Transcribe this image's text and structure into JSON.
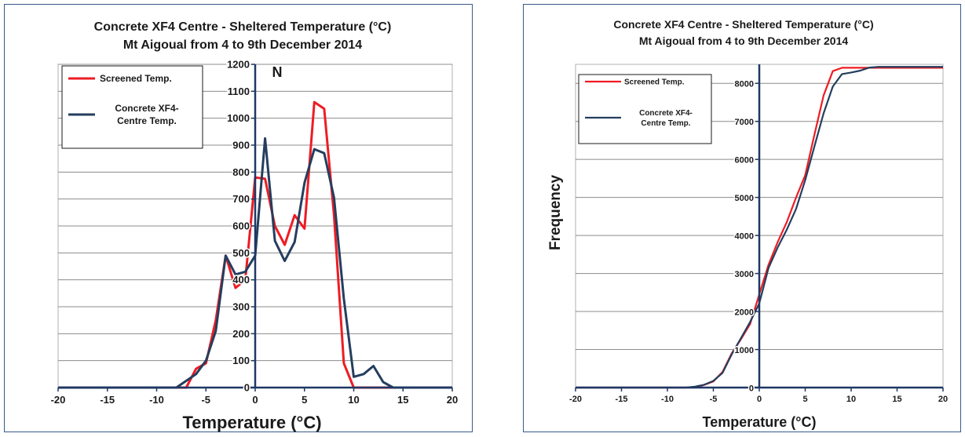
{
  "colors": {
    "screened": "#ee1c24",
    "concrete": "#243e5e",
    "axis": "#1f3864",
    "grid": "#8c8c8c",
    "border": "#3a5a8c"
  },
  "chart_data": [
    {
      "type": "line",
      "title_lines": [
        "Concrete XF4 Centre - Sheltered Temperature (°C)",
        "Mt Aigoual from 4 to 9th December 2014"
      ],
      "xlabel": "Temperature (°C)",
      "ylabel": "N",
      "xlim": [
        -20,
        20
      ],
      "ylim": [
        0,
        1200
      ],
      "x_ticks": [
        "-20",
        "-15",
        "-10",
        "-5",
        "0",
        "5",
        "10",
        "15",
        "20"
      ],
      "y_ticks": [
        "0",
        "100",
        "200",
        "300",
        "400",
        "500",
        "600",
        "700",
        "800",
        "900",
        "1000",
        "1100",
        "1200"
      ],
      "grid": true,
      "legend_position": "top-left",
      "legend": [
        "Screened Temp.",
        [
          "Concrete XF4-",
          "Centre Temp."
        ]
      ],
      "series": [
        {
          "name": "Screened Temp.",
          "x": [
            -20,
            -8,
            -7,
            -6,
            -5,
            -4,
            -3,
            -2,
            -1,
            0,
            1,
            2,
            3,
            4,
            5,
            6,
            7,
            8,
            9,
            10,
            11,
            12,
            13,
            14,
            20
          ],
          "y": [
            0,
            0,
            0,
            70,
            90,
            250,
            490,
            370,
            400,
            780,
            775,
            600,
            530,
            640,
            590,
            1060,
            1035,
            640,
            90,
            0,
            0,
            0,
            0,
            0,
            0
          ]
        },
        {
          "name": "Concrete XF4-Centre Temp.",
          "x": [
            -20,
            -8,
            -7,
            -6,
            -5,
            -4,
            -3,
            -2,
            -1,
            0,
            1,
            2,
            3,
            4,
            5,
            6,
            7,
            8,
            9,
            10,
            11,
            12,
            13,
            14,
            20
          ],
          "y": [
            0,
            0,
            25,
            50,
            100,
            210,
            490,
            420,
            430,
            490,
            925,
            545,
            470,
            540,
            760,
            885,
            870,
            705,
            330,
            40,
            50,
            80,
            20,
            0,
            0
          ]
        }
      ]
    },
    {
      "type": "line",
      "title_lines": [
        "Concrete XF4 Centre - Sheltered Temperature (°C)",
        "Mt Aigoual from 4 to 9th December 2014"
      ],
      "xlabel": "Temperature (°C)",
      "ylabel": "Frequency",
      "xlim": [
        -20,
        20
      ],
      "ylim": [
        0,
        8500
      ],
      "x_ticks": [
        "-20",
        "-15",
        "-10",
        "-5",
        "0",
        "5",
        "10",
        "15",
        "20"
      ],
      "y_ticks": [
        "0",
        "1000",
        "2000",
        "3000",
        "4000",
        "5000",
        "6000",
        "7000",
        "8000"
      ],
      "grid": true,
      "legend_position": "top-left",
      "legend": [
        "Screened Temp.",
        [
          "Concrete XF4-",
          "Centre Temp."
        ]
      ],
      "series": [
        {
          "name": "Screened Temp.",
          "x": [
            -20,
            -8,
            -7,
            -6,
            -5,
            -4,
            -3,
            -2,
            -1,
            0,
            1,
            2,
            3,
            4,
            5,
            6,
            7,
            8,
            9,
            10,
            11,
            12,
            14,
            20
          ],
          "y": [
            0,
            0,
            0,
            70,
            160,
            410,
            900,
            1270,
            1670,
            2450,
            3225,
            3825,
            4355,
            4995,
            5585,
            6645,
            7680,
            8320,
            8410,
            8410,
            8410,
            8410,
            8410,
            8410
          ]
        },
        {
          "name": "Concrete XF4-Centre Temp.",
          "x": [
            -20,
            -8,
            -7,
            -6,
            -5,
            -4,
            -3,
            -2,
            -1,
            0,
            1,
            2,
            3,
            4,
            5,
            6,
            7,
            8,
            9,
            10,
            11,
            12,
            13,
            14,
            20
          ],
          "y": [
            0,
            0,
            25,
            75,
            175,
            385,
            875,
            1295,
            1725,
            2215,
            3140,
            3685,
            4155,
            4695,
            5455,
            6340,
            7210,
            7915,
            8245,
            8285,
            8335,
            8415,
            8435,
            8435,
            8435
          ]
        }
      ]
    }
  ]
}
